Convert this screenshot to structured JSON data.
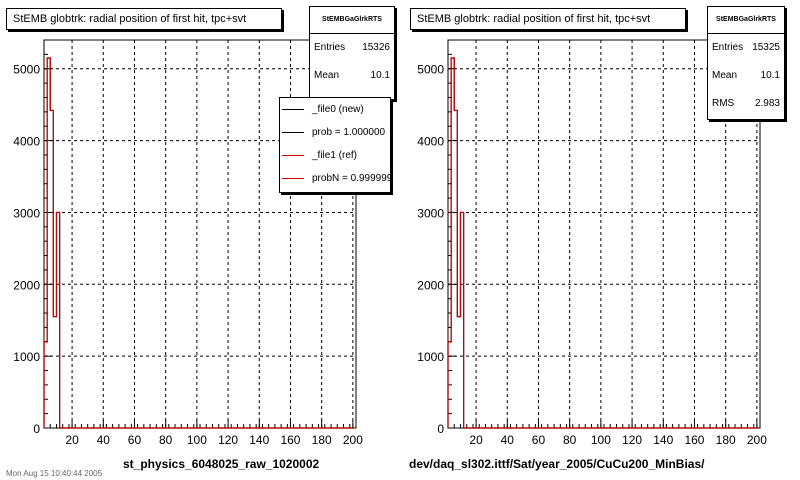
{
  "colors": {
    "new": "#000000",
    "ref": "#cc0000",
    "grid": "#000000",
    "axis": "#000000"
  },
  "panels": [
    {
      "title": "StEMB globtrk: radial position of first hit, tpc+svt",
      "stats": {
        "name": "StEMBGaGlrkRTS",
        "entries_label": "Entries",
        "entries": "15326",
        "mean_label": "Mean",
        "mean": "10.1"
      },
      "legend": [
        {
          "label": "_file0 (new)",
          "color": "#000000"
        },
        {
          "label": "prob = 1.000000",
          "color": "#000000"
        },
        {
          "label": "_file1 (ref)",
          "color": "#cc0000"
        },
        {
          "label": "probN = 0.999999",
          "color": "#cc0000"
        }
      ],
      "footer": "st_physics_6048025_raw_1020002"
    },
    {
      "title": "StEMB globtrk: radial position of first hit, tpc+svt",
      "stats": {
        "name": "StEMBGaGlrkRTS",
        "entries_label": "Entries",
        "entries": "15325",
        "mean_label": "Mean",
        "mean": "10.1",
        "rms_label": "RMS",
        "rms": "2.983"
      },
      "footer": "dev/daq_sl302.ittf/Sat/year_2005/CuCu200_MinBias/"
    }
  ],
  "bottom_note": "Mon Aug 15 10:40:44 2005",
  "chart_data": [
    {
      "type": "histogram",
      "title": "StEMB globtrk: radial position of first hit, tpc+svt",
      "xlim": [
        2,
        202
      ],
      "ylim": [
        0,
        5400
      ],
      "xticks": [
        20,
        40,
        60,
        80,
        100,
        120,
        140,
        160,
        180,
        200
      ],
      "yticks": [
        0,
        1000,
        2000,
        3000,
        4000,
        5000
      ],
      "grid": true,
      "legend_position": "top-right",
      "bin_edges": [
        2,
        4,
        6,
        8,
        10,
        12,
        14,
        16,
        18,
        200
      ],
      "series": [
        {
          "name": "_file0 (new)",
          "values": [
            1200,
            5150,
            4420,
            1550,
            3000,
            0,
            0,
            0,
            0
          ]
        },
        {
          "name": "_file1 (ref)",
          "values": [
            1200,
            5150,
            4420,
            1550,
            3000,
            0,
            0,
            0,
            0
          ]
        }
      ]
    },
    {
      "type": "histogram",
      "title": "StEMB globtrk: radial position of first hit, tpc+svt",
      "xlim": [
        2,
        202
      ],
      "ylim": [
        0,
        5400
      ],
      "xticks": [
        20,
        40,
        60,
        80,
        100,
        120,
        140,
        160,
        180,
        200
      ],
      "yticks": [
        0,
        1000,
        2000,
        3000,
        4000,
        5000
      ],
      "grid": true,
      "bin_edges": [
        2,
        4,
        6,
        8,
        10,
        12,
        14,
        16,
        18,
        200
      ],
      "series": [
        {
          "name": "_file0 (new)",
          "values": [
            1200,
            5150,
            4420,
            1550,
            3000,
            0,
            0,
            0,
            0
          ]
        },
        {
          "name": "_file1 (ref)",
          "values": [
            1200,
            5150,
            4420,
            1550,
            3000,
            0,
            0,
            0,
            0
          ]
        }
      ]
    }
  ]
}
